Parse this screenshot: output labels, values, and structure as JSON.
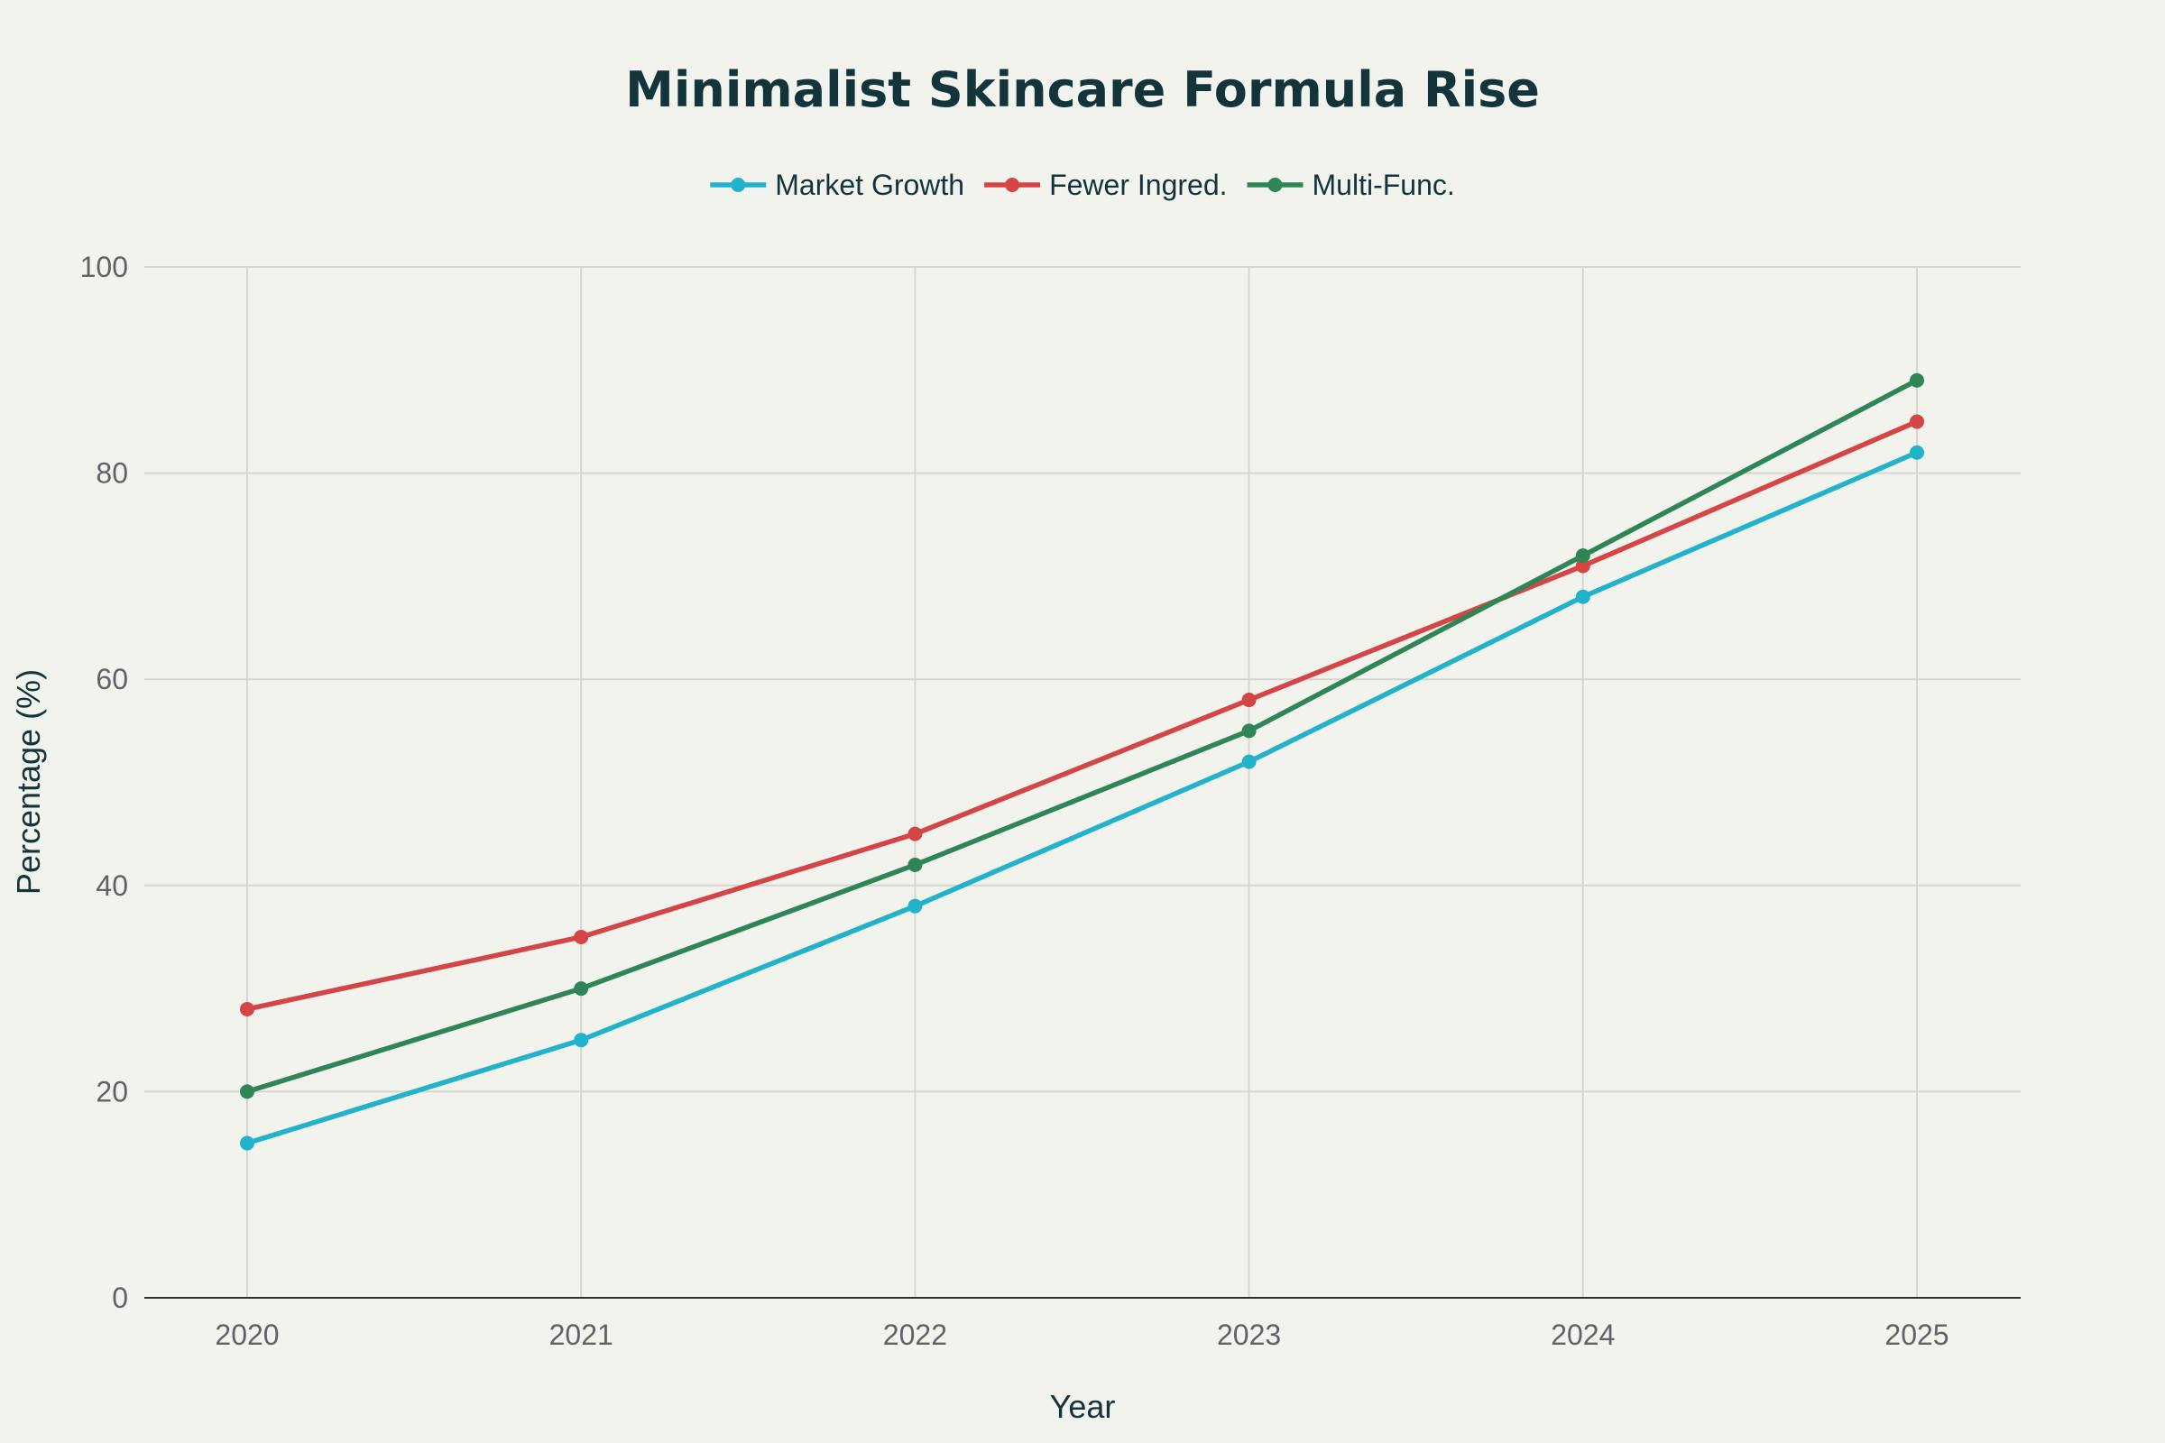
{
  "chart_data": {
    "type": "line",
    "title": "Minimalist Skincare Formula Rise",
    "xlabel": "Year",
    "ylabel": "Percentage (%)",
    "x": [
      "2020",
      "2021",
      "2022",
      "2023",
      "2024",
      "2025"
    ],
    "ylim": [
      0,
      100
    ],
    "yticks": [
      "0",
      "20",
      "40",
      "60",
      "80",
      "100"
    ],
    "grid": true,
    "legend_position": "top-center",
    "series": [
      {
        "name": "Market Growth",
        "color": "#22b2cb",
        "values": [
          15,
          25,
          38,
          52,
          68,
          82
        ]
      },
      {
        "name": "Fewer Ingred.",
        "color": "#d64545",
        "values": [
          28,
          35,
          45,
          58,
          71,
          85
        ]
      },
      {
        "name": "Multi-Func.",
        "color": "#2e8556",
        "values": [
          20,
          30,
          42,
          55,
          72,
          89
        ]
      }
    ]
  }
}
